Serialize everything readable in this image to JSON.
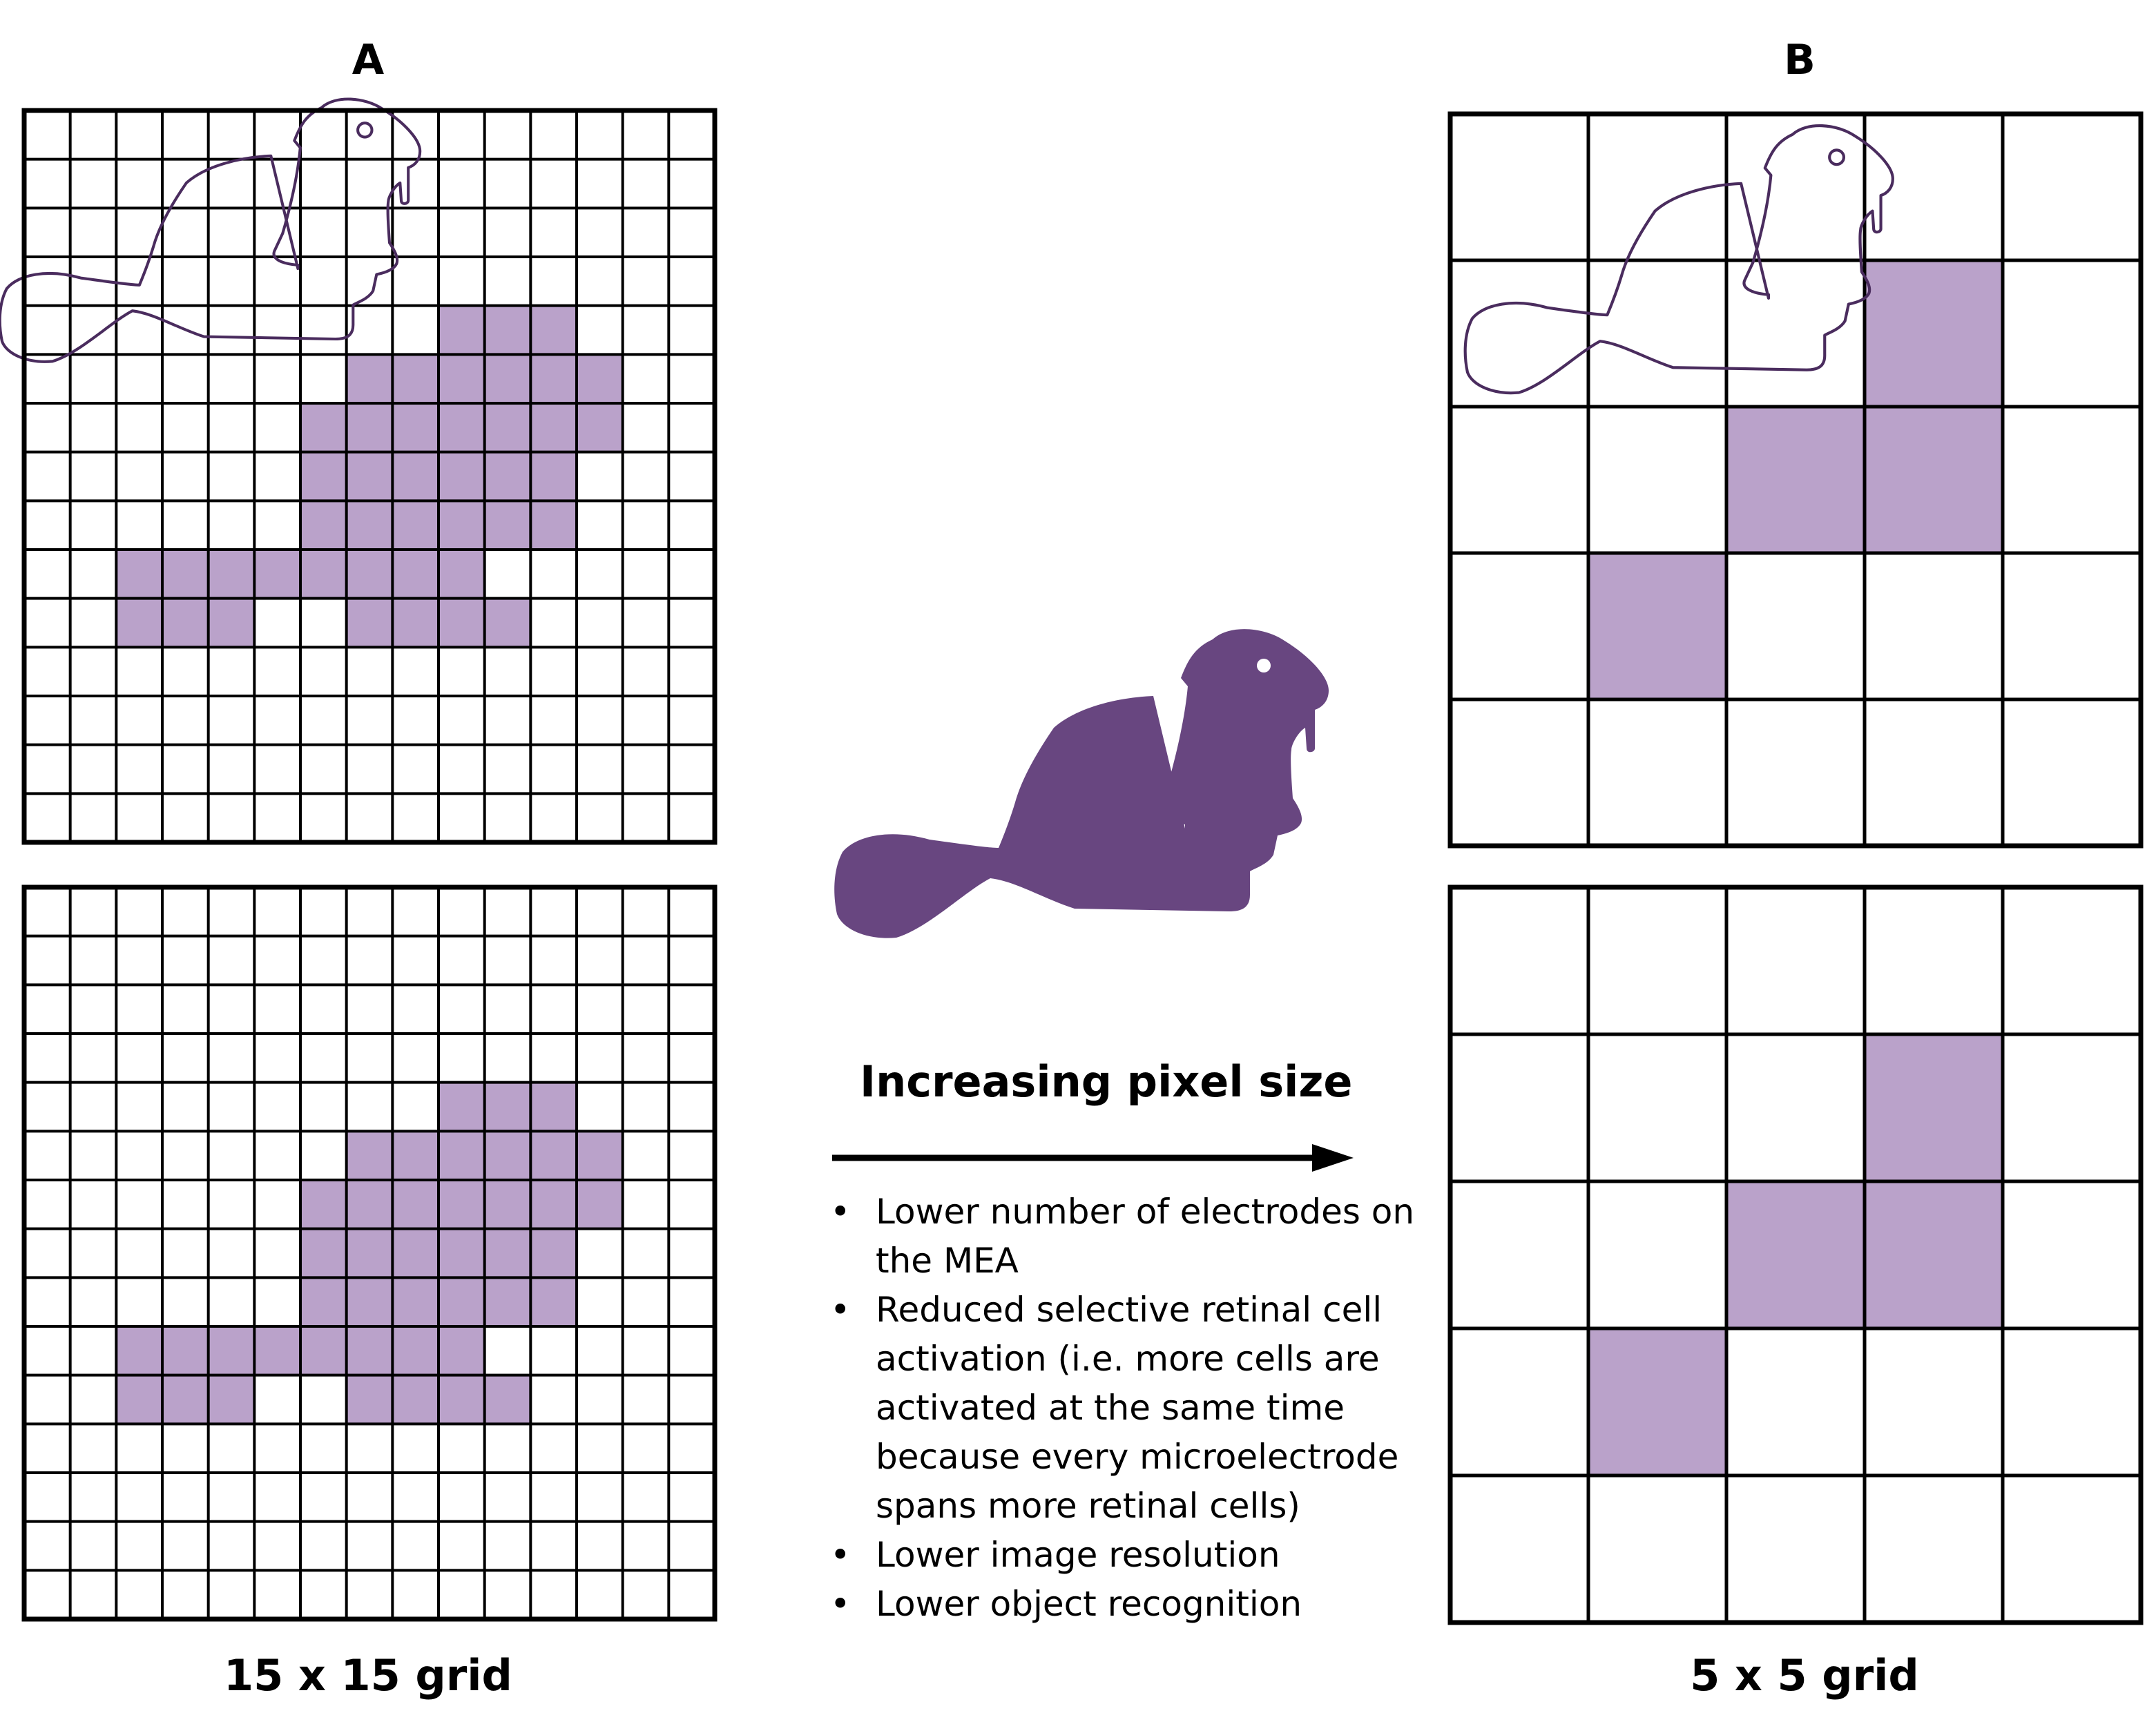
{
  "panels": {
    "a_label": "A",
    "b_label": "B",
    "a_caption": "15 x 15 grid",
    "b_caption": "5 x 5 grid"
  },
  "center": {
    "headline": "Increasing pixel size",
    "bullets": [
      "Lower number of electrodes on the MEA",
      "Reduced selective retinal cell activation (i.e. more cells are activated at the same time because every microelectrode spans more retinal cells)",
      "Lower image resolution",
      "Lower object recognition"
    ]
  },
  "grids": {
    "a": {
      "cells": 15,
      "filled": [
        [
          4,
          9
        ],
        [
          4,
          10
        ],
        [
          4,
          11
        ],
        [
          5,
          7
        ],
        [
          5,
          8
        ],
        [
          5,
          9
        ],
        [
          5,
          10
        ],
        [
          5,
          11
        ],
        [
          5,
          12
        ],
        [
          6,
          6
        ],
        [
          6,
          7
        ],
        [
          6,
          8
        ],
        [
          6,
          9
        ],
        [
          6,
          10
        ],
        [
          6,
          11
        ],
        [
          6,
          12
        ],
        [
          7,
          6
        ],
        [
          7,
          7
        ],
        [
          7,
          8
        ],
        [
          7,
          9
        ],
        [
          7,
          10
        ],
        [
          7,
          11
        ],
        [
          8,
          6
        ],
        [
          8,
          7
        ],
        [
          8,
          8
        ],
        [
          8,
          9
        ],
        [
          8,
          10
        ],
        [
          8,
          11
        ],
        [
          9,
          2
        ],
        [
          9,
          3
        ],
        [
          9,
          4
        ],
        [
          9,
          5
        ],
        [
          9,
          6
        ],
        [
          9,
          7
        ],
        [
          9,
          8
        ],
        [
          9,
          9
        ],
        [
          10,
          2
        ],
        [
          10,
          3
        ],
        [
          10,
          4
        ],
        [
          10,
          7
        ],
        [
          10,
          8
        ],
        [
          10,
          9
        ],
        [
          10,
          10
        ]
      ]
    },
    "b": {
      "cells": 5,
      "filled": [
        [
          1,
          3
        ],
        [
          2,
          2
        ],
        [
          2,
          3
        ],
        [
          3,
          1
        ]
      ]
    }
  },
  "colors": {
    "fill_light": "#baa2ca",
    "beaver_dark": "#684680",
    "outline": "#4a2c5e",
    "grid_line": "#000000"
  },
  "icons": [
    "beaver-icon",
    "arrow-right-icon"
  ]
}
